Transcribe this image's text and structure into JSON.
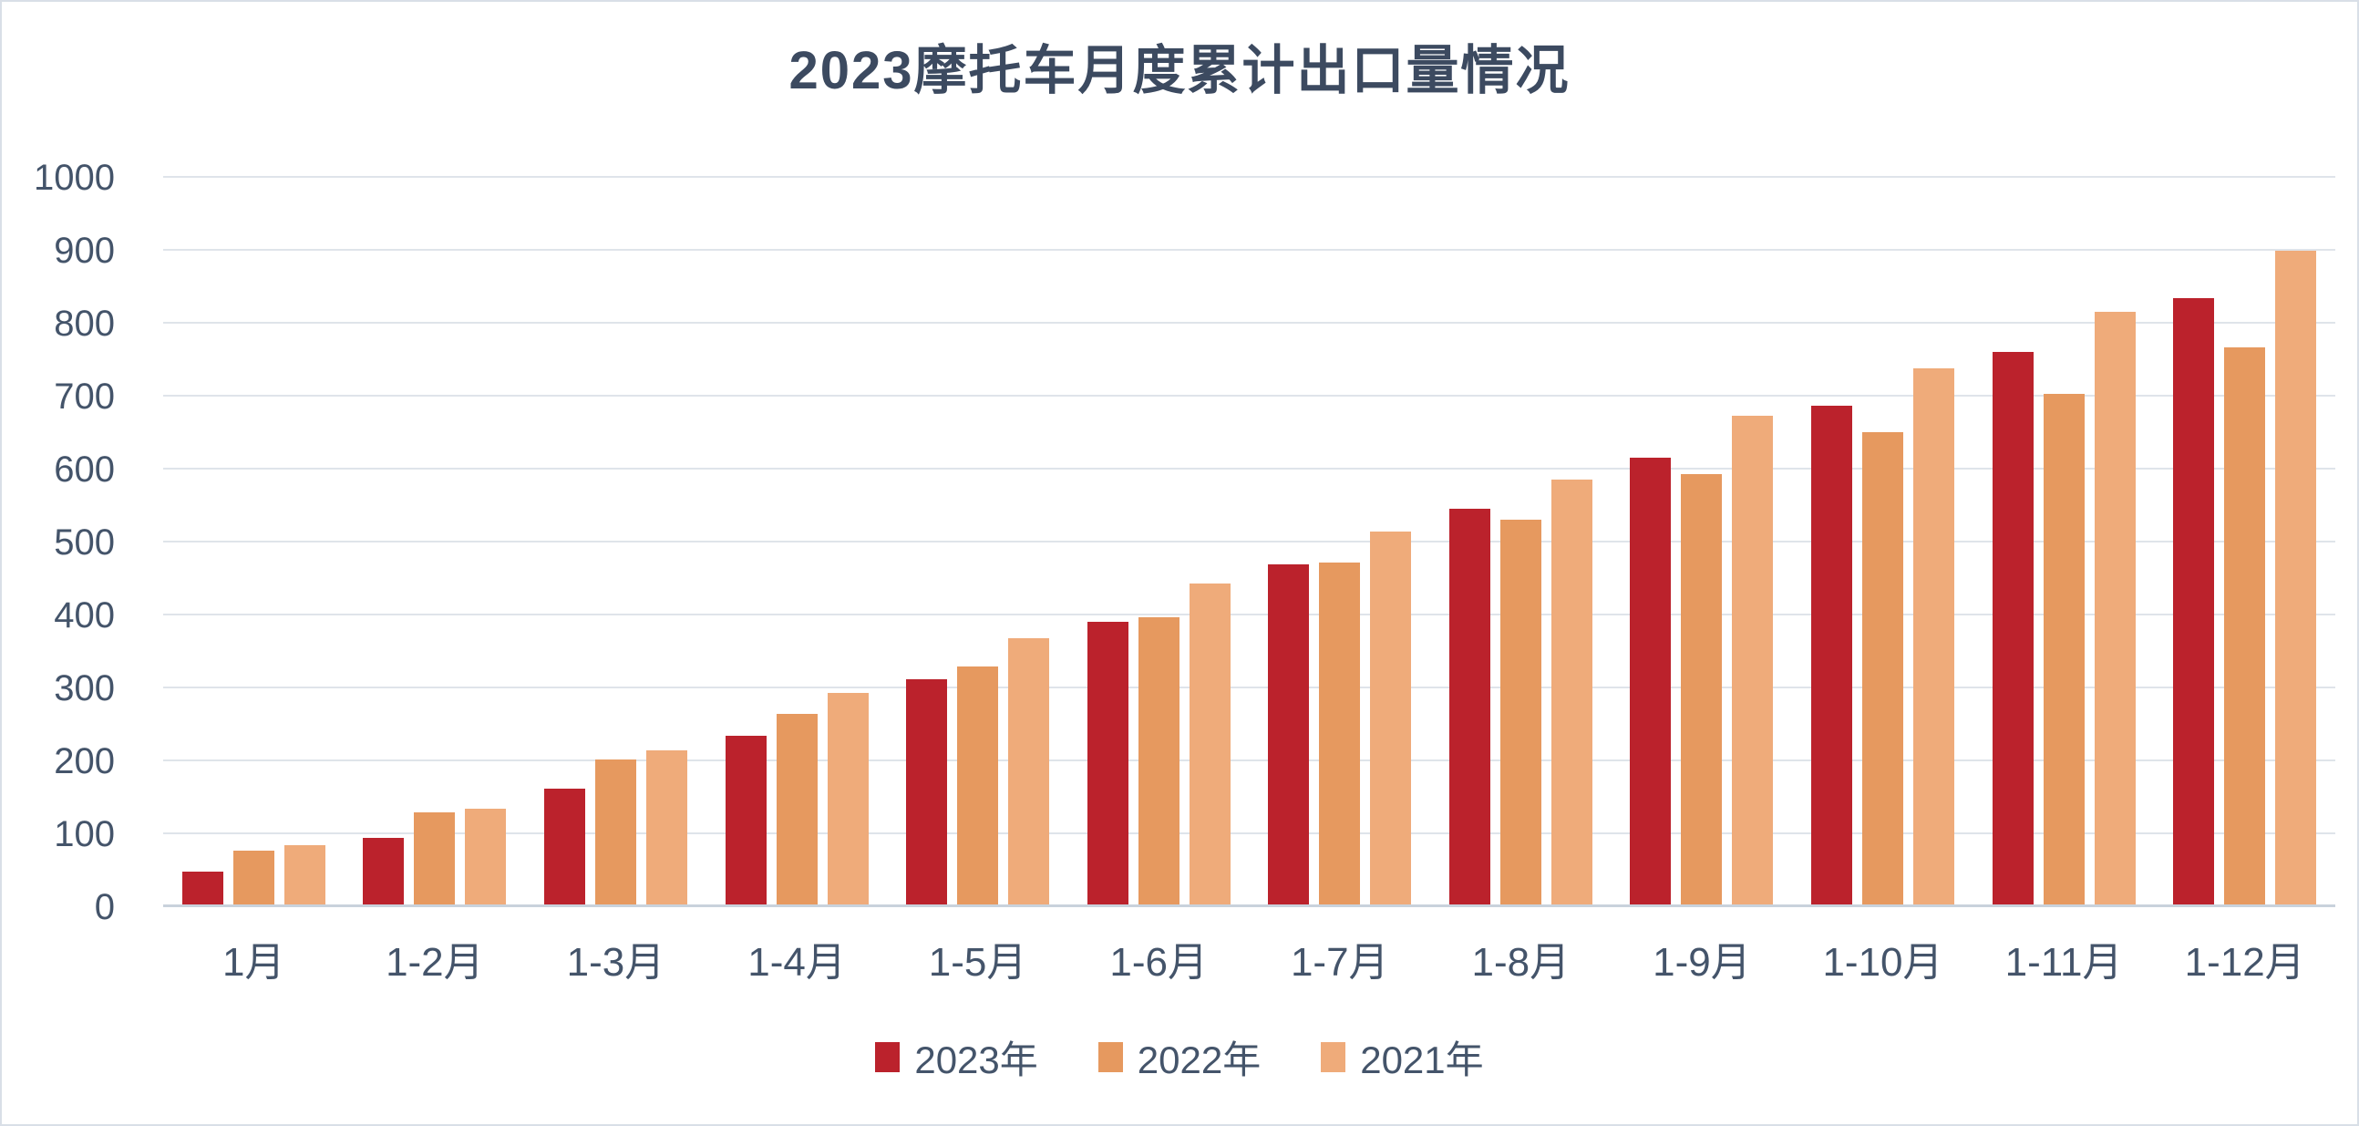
{
  "chart_data": {
    "type": "bar",
    "title": "2023摩托车月度累计出口量情况",
    "categories": [
      "1月",
      "1-2月",
      "1-3月",
      "1-4月",
      "1-5月",
      "1-6月",
      "1-7月",
      "1-8月",
      "1-9月",
      "1-10月",
      "1-11月",
      "1-12月"
    ],
    "series": [
      {
        "name": "2023年",
        "color": "#BB222C",
        "values": [
          45,
          91,
          159,
          231,
          309,
          387,
          466,
          542,
          613,
          684,
          757,
          831
        ]
      },
      {
        "name": "2022年",
        "color": "#E6995F",
        "values": [
          74,
          126,
          199,
          261,
          326,
          394,
          469,
          528,
          590,
          648,
          700,
          764
        ]
      },
      {
        "name": "2021年",
        "color": "#EFAB7A",
        "values": [
          81,
          131,
          211,
          290,
          365,
          440,
          511,
          582,
          670,
          735,
          813,
          896
        ]
      }
    ],
    "ylim": [
      0,
      1000
    ],
    "ytick_step": 100,
    "yticks": [
      0,
      100,
      200,
      300,
      400,
      500,
      600,
      700,
      800,
      900,
      1000
    ],
    "xlabel": "",
    "ylabel": "",
    "grid": true,
    "legend_position": "bottom"
  },
  "colors": {
    "background": "#FFFFFF",
    "border": "#D9DFE7",
    "title_text": "#3C4A60",
    "axis_text": "#44546A",
    "gridline": "#DFE4EA",
    "zero_axis_line": "#C9D2DC"
  }
}
